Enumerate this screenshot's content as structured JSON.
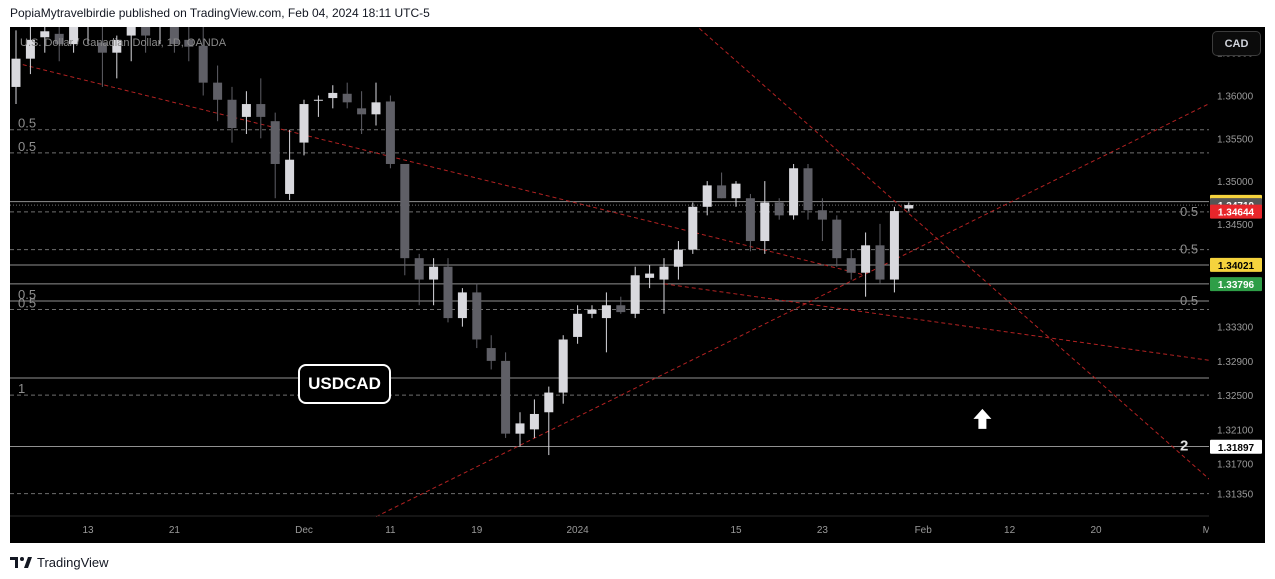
{
  "header": {
    "text": "PopiaMytravelbirdie published on TradingView.com, Feb 04, 2024 18:11 UTC-5"
  },
  "footer": {
    "brand": "TradingView"
  },
  "currency_button": {
    "label": "CAD"
  },
  "symbol_box": {
    "label": "USDCAD"
  },
  "symbol_title": "U.S. Dollar / Canadian Dollar, 1D, OANDA",
  "colors": {
    "background": "#000000",
    "candle_up": "#d9d9de",
    "candle_down": "#5f5f66",
    "trendline": "#b22222",
    "level_line": "#8a8a8a",
    "badge_yellow": "#f5d33d",
    "badge_red": "#e8262b",
    "badge_green": "#2e9e47",
    "badge_gray": "#555555"
  },
  "chart_data": {
    "type": "candlestick",
    "symbol": "USDCAD",
    "interval": "1D",
    "ylim": [
      1.311,
      1.368
    ],
    "y_ticks": [
      "1.36500",
      "1.36000",
      "1.35500",
      "1.35000",
      "1.34500",
      "1.34000",
      "1.33300",
      "1.32900",
      "1.32500",
      "1.32100",
      "1.31700",
      "1.31350"
    ],
    "x_ticks": [
      {
        "label": "13",
        "i": 5
      },
      {
        "label": "21",
        "i": 11
      },
      {
        "label": "Dec",
        "i": 20
      },
      {
        "label": "11",
        "i": 26
      },
      {
        "label": "19",
        "i": 32
      },
      {
        "label": "2024",
        "i": 39
      },
      {
        "label": "15",
        "i": 50
      },
      {
        "label": "23",
        "i": 56
      },
      {
        "label": "Feb",
        "i": 63
      },
      {
        "label": "12",
        "i": 69
      },
      {
        "label": "20",
        "i": 75
      },
      {
        "label": "Mar",
        "i": 83
      }
    ],
    "price_badges": [
      {
        "value": "1.34758",
        "color": "#f5d33d",
        "text_color": "#000000"
      },
      {
        "value": "1.34719",
        "color": "#555555",
        "text_color": "#ffffff"
      },
      {
        "value": "1.34644",
        "color": "#e8262b",
        "text_color": "#ffffff"
      },
      {
        "value": "1.34021",
        "color": "#f5d33d",
        "text_color": "#000000"
      },
      {
        "value": "1.33796",
        "color": "#2e9e47",
        "text_color": "#ffffff"
      },
      {
        "value": "1.31897",
        "color": "#ffffff",
        "text_color": "#000000"
      }
    ],
    "candles": [
      {
        "o": 1.361,
        "h": 1.3676,
        "l": 1.359,
        "c": 1.3643
      },
      {
        "o": 1.3643,
        "h": 1.3682,
        "l": 1.3625,
        "c": 1.3665
      },
      {
        "o": 1.3668,
        "h": 1.369,
        "l": 1.365,
        "c": 1.3675
      },
      {
        "o": 1.3672,
        "h": 1.37,
        "l": 1.364,
        "c": 1.366
      },
      {
        "o": 1.366,
        "h": 1.37,
        "l": 1.365,
        "c": 1.368
      },
      {
        "o": 1.368,
        "h": 1.37,
        "l": 1.366,
        "c": 1.369
      },
      {
        "o": 1.3662,
        "h": 1.369,
        "l": 1.361,
        "c": 1.365
      },
      {
        "o": 1.365,
        "h": 1.367,
        "l": 1.362,
        "c": 1.3665
      },
      {
        "o": 1.367,
        "h": 1.369,
        "l": 1.364,
        "c": 1.369
      },
      {
        "o": 1.369,
        "h": 1.37,
        "l": 1.365,
        "c": 1.367
      },
      {
        "o": 1.368,
        "h": 1.369,
        "l": 1.366,
        "c": 1.369
      },
      {
        "o": 1.369,
        "h": 1.37,
        "l": 1.365,
        "c": 1.366
      },
      {
        "o": 1.3665,
        "h": 1.368,
        "l": 1.364,
        "c": 1.3657
      },
      {
        "o": 1.3658,
        "h": 1.368,
        "l": 1.36,
        "c": 1.3615
      },
      {
        "o": 1.3615,
        "h": 1.3635,
        "l": 1.357,
        "c": 1.3595
      },
      {
        "o": 1.3595,
        "h": 1.361,
        "l": 1.3545,
        "c": 1.3562
      },
      {
        "o": 1.3575,
        "h": 1.3605,
        "l": 1.3555,
        "c": 1.359
      },
      {
        "o": 1.359,
        "h": 1.362,
        "l": 1.355,
        "c": 1.3575
      },
      {
        "o": 1.357,
        "h": 1.358,
        "l": 1.348,
        "c": 1.352
      },
      {
        "o": 1.3485,
        "h": 1.356,
        "l": 1.3478,
        "c": 1.3525
      },
      {
        "o": 1.3545,
        "h": 1.3595,
        "l": 1.353,
        "c": 1.359
      },
      {
        "o": 1.3595,
        "h": 1.36,
        "l": 1.3575,
        "c": 1.3595
      },
      {
        "o": 1.3597,
        "h": 1.3612,
        "l": 1.3585,
        "c": 1.3603
      },
      {
        "o": 1.3602,
        "h": 1.3615,
        "l": 1.3585,
        "c": 1.3592
      },
      {
        "o": 1.3585,
        "h": 1.3605,
        "l": 1.3555,
        "c": 1.3578
      },
      {
        "o": 1.3578,
        "h": 1.3615,
        "l": 1.3565,
        "c": 1.3592
      },
      {
        "o": 1.3593,
        "h": 1.36,
        "l": 1.3515,
        "c": 1.352
      },
      {
        "o": 1.352,
        "h": 1.352,
        "l": 1.339,
        "c": 1.341
      },
      {
        "o": 1.341,
        "h": 1.3415,
        "l": 1.3355,
        "c": 1.3385
      },
      {
        "o": 1.3385,
        "h": 1.341,
        "l": 1.3355,
        "c": 1.34
      },
      {
        "o": 1.34,
        "h": 1.341,
        "l": 1.3335,
        "c": 1.334
      },
      {
        "o": 1.334,
        "h": 1.3375,
        "l": 1.333,
        "c": 1.337
      },
      {
        "o": 1.337,
        "h": 1.338,
        "l": 1.3305,
        "c": 1.3315
      },
      {
        "o": 1.3305,
        "h": 1.332,
        "l": 1.328,
        "c": 1.329
      },
      {
        "o": 1.329,
        "h": 1.33,
        "l": 1.32,
        "c": 1.3205
      },
      {
        "o": 1.3205,
        "h": 1.323,
        "l": 1.319,
        "c": 1.3217
      },
      {
        "o": 1.321,
        "h": 1.3245,
        "l": 1.32,
        "c": 1.3228
      },
      {
        "o": 1.323,
        "h": 1.326,
        "l": 1.318,
        "c": 1.3253
      },
      {
        "o": 1.3253,
        "h": 1.332,
        "l": 1.324,
        "c": 1.3315
      },
      {
        "o": 1.3318,
        "h": 1.3355,
        "l": 1.331,
        "c": 1.3345
      },
      {
        "o": 1.3345,
        "h": 1.3355,
        "l": 1.334,
        "c": 1.335
      },
      {
        "o": 1.334,
        "h": 1.337,
        "l": 1.33,
        "c": 1.3355
      },
      {
        "o": 1.3355,
        "h": 1.3365,
        "l": 1.3345,
        "c": 1.3347
      },
      {
        "o": 1.3345,
        "h": 1.34,
        "l": 1.334,
        "c": 1.339
      },
      {
        "o": 1.3387,
        "h": 1.3402,
        "l": 1.3375,
        "c": 1.3392
      },
      {
        "o": 1.3385,
        "h": 1.341,
        "l": 1.3345,
        "c": 1.34
      },
      {
        "o": 1.34,
        "h": 1.343,
        "l": 1.3385,
        "c": 1.342
      },
      {
        "o": 1.342,
        "h": 1.3475,
        "l": 1.3415,
        "c": 1.347
      },
      {
        "o": 1.347,
        "h": 1.35,
        "l": 1.346,
        "c": 1.3495
      },
      {
        "o": 1.3495,
        "h": 1.351,
        "l": 1.348,
        "c": 1.348
      },
      {
        "o": 1.348,
        "h": 1.35,
        "l": 1.347,
        "c": 1.3497
      },
      {
        "o": 1.348,
        "h": 1.3485,
        "l": 1.3418,
        "c": 1.343
      },
      {
        "o": 1.343,
        "h": 1.35,
        "l": 1.3415,
        "c": 1.3475
      },
      {
        "o": 1.3475,
        "h": 1.348,
        "l": 1.3455,
        "c": 1.346
      },
      {
        "o": 1.346,
        "h": 1.352,
        "l": 1.3455,
        "c": 1.3515
      },
      {
        "o": 1.3515,
        "h": 1.352,
        "l": 1.3455,
        "c": 1.3466
      },
      {
        "o": 1.3466,
        "h": 1.348,
        "l": 1.343,
        "c": 1.3455
      },
      {
        "o": 1.3455,
        "h": 1.346,
        "l": 1.34,
        "c": 1.341
      },
      {
        "o": 1.341,
        "h": 1.342,
        "l": 1.3385,
        "c": 1.3393
      },
      {
        "o": 1.3393,
        "h": 1.344,
        "l": 1.3365,
        "c": 1.3425
      },
      {
        "o": 1.3425,
        "h": 1.345,
        "l": 1.338,
        "c": 1.3385
      },
      {
        "o": 1.3385,
        "h": 1.347,
        "l": 1.337,
        "c": 1.3465
      },
      {
        "o": 1.3468,
        "h": 1.3475,
        "l": 1.3465,
        "c": 1.3472
      }
    ],
    "horizontal_levels": [
      {
        "price": 1.356,
        "left_label": "0.5",
        "right_label": "",
        "style": "dashed"
      },
      {
        "price": 1.3533,
        "left_label": "0.5",
        "right_label": "",
        "style": "dashed"
      },
      {
        "price": 1.3476,
        "left_label": "",
        "right_label": "",
        "style": "solid"
      },
      {
        "price": 1.3472,
        "left_label": "",
        "right_label": "",
        "style": "dotted"
      },
      {
        "price": 1.3464,
        "left_label": "",
        "right_label": "0.5",
        "style": "dashed"
      },
      {
        "price": 1.342,
        "left_label": "",
        "right_label": "0.5",
        "style": "dashed"
      },
      {
        "price": 1.3402,
        "left_label": "",
        "right_label": "",
        "style": "solid"
      },
      {
        "price": 1.338,
        "left_label": "",
        "right_label": "",
        "style": "solid"
      },
      {
        "price": 1.336,
        "left_label": "0.5",
        "right_label": "0.5",
        "style": "solid"
      },
      {
        "price": 1.335,
        "left_label": "0.5",
        "right_label": "",
        "style": "dashed"
      },
      {
        "price": 1.327,
        "left_label": "",
        "right_label": "",
        "style": "solid"
      },
      {
        "price": 1.325,
        "left_label": "1",
        "right_label": "",
        "style": "dashed"
      },
      {
        "price": 1.319,
        "left_label": "",
        "right_label": "2",
        "style": "solid"
      },
      {
        "price": 1.3135,
        "left_label": "",
        "right_label": "",
        "style": "dashed"
      }
    ],
    "trendlines": [
      {
        "from": {
          "i": 0,
          "p": 1.3638
        },
        "to": {
          "i": 59,
          "p": 1.339
        }
      },
      {
        "from": {
          "i": 25,
          "p": 1.3108
        },
        "to": {
          "i": 84,
          "p": 1.36
        }
      },
      {
        "from": {
          "i": 46,
          "p": 1.37
        },
        "to": {
          "i": 84,
          "p": 1.3135
        }
      },
      {
        "from": {
          "i": 45,
          "p": 1.338
        },
        "to": {
          "i": 84,
          "p": 1.3288
        }
      }
    ],
    "arrow": {
      "i": 66,
      "p": 1.322,
      "direction": "up"
    }
  }
}
